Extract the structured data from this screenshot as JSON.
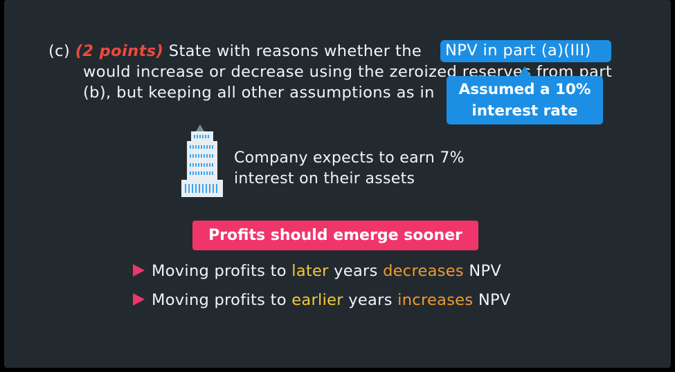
{
  "question": {
    "label": "(c)",
    "points": "(2 points)",
    "line1_text": "State with reasons whether the",
    "line2_text": "would increase or decrease using the zeroized reserves from part",
    "line3_text": "(b), but keeping all other assumptions as in"
  },
  "npv_highlight": "NPV in part (a)(III)",
  "tooltip": {
    "line1": "Assumed a 10%",
    "line2": "interest rate"
  },
  "company": {
    "line1": "Company expects to earn 7%",
    "line2": "interest on their assets"
  },
  "profit_badge": "Profits should emerge sooner",
  "bullets": [
    {
      "p1": "Moving profits to ",
      "hl1": "later",
      "p2": " years ",
      "hl2": "decreases",
      "p3": " NPV"
    },
    {
      "p1": "Moving profits to ",
      "hl1": "earlier",
      "p2": " years ",
      "hl2": "increases",
      "p3": " NPV"
    }
  ],
  "colors": {
    "background": "#222a30",
    "accent_blue": "#1c8fe4",
    "accent_pink": "#f0356a",
    "points_red": "#ee4a3c",
    "highlight_yellow": "#f4c83c",
    "highlight_orange": "#f29a30"
  }
}
